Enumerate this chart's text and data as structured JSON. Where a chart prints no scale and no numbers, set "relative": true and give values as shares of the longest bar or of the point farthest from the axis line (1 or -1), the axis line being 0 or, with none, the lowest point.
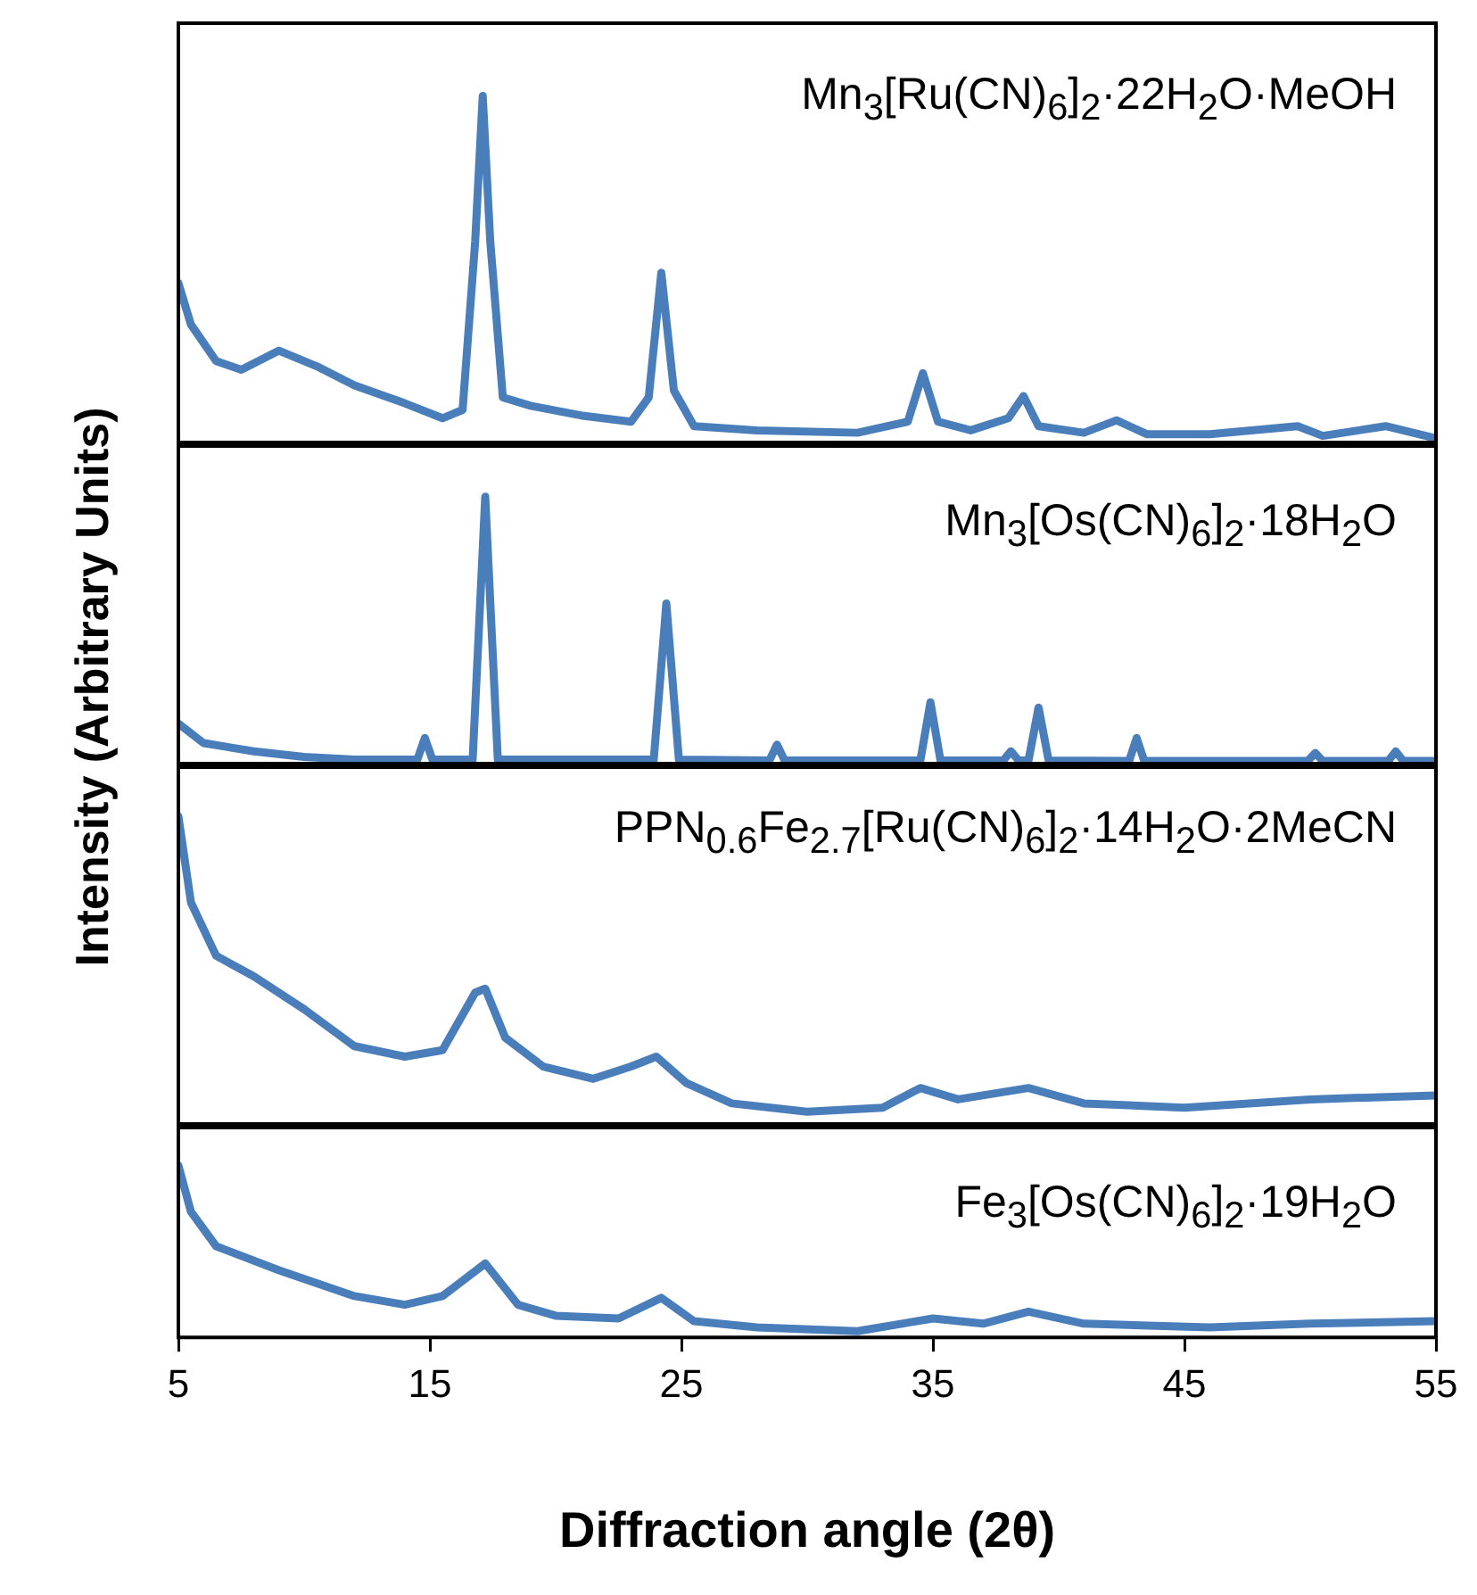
{
  "chart_data": [
    {
      "type": "line",
      "title": "Mn$_{3}$[Ru(CN)$_{6}$]$_{2}$·22H$_{2}$O·MeOH",
      "ylabel": "Intensity (Arbitrary Units)",
      "relative": true,
      "xlim": [
        5,
        55
      ],
      "xticks": [
        5,
        15,
        25,
        35,
        45,
        55
      ],
      "tick_labels": false,
      "legend": false,
      "marker": "none",
      "series": [
        {
          "color": "#4a7ebb",
          "x": [
            5,
            5.5,
            6.5,
            7.5,
            9,
            10.5,
            12,
            14,
            15.5,
            16.3,
            16.8,
            17.1,
            17.4,
            17.9,
            19,
            21,
            23,
            23.7,
            24.2,
            24.7,
            25.5,
            28,
            32,
            34,
            34.6,
            35.2,
            36.5,
            38,
            38.6,
            39.2,
            41,
            42.3,
            43.5,
            46,
            49.5,
            50.5,
            53,
            55
          ],
          "values": [
            0.46,
            0.34,
            0.235,
            0.21,
            0.265,
            0.22,
            0.165,
            0.113,
            0.07,
            0.094,
            0.58,
            1,
            0.58,
            0.13,
            0.106,
            0.078,
            0.06,
            0.13,
            0.49,
            0.15,
            0.047,
            0.035,
            0.028,
            0.06,
            0.2,
            0.06,
            0.035,
            0.07,
            0.134,
            0.047,
            0.028,
            0.064,
            0.024,
            0.024,
            0.047,
            0.019,
            0.047,
            0.012
          ]
        }
      ]
    },
    {
      "type": "line",
      "title": "Mn$_{3}$[Os(CN)$_{6}$]$_{2}$·18H$_{2}$O",
      "relative": true,
      "xlim": [
        5,
        55
      ],
      "xticks": [
        5,
        15,
        25,
        35,
        45,
        55
      ],
      "tick_labels": false,
      "legend": false,
      "marker": "none",
      "series": [
        {
          "color": "#4a7ebb",
          "x": [
            5,
            6,
            8,
            10,
            12,
            14.5,
            14.8,
            15.1,
            16.7,
            17.2,
            17.7,
            23.9,
            24.4,
            24.9,
            28.5,
            28.8,
            29.1,
            34.5,
            34.9,
            35.3,
            37.8,
            38.1,
            38.4,
            38.8,
            39.2,
            39.6,
            42.8,
            43.1,
            43.4,
            49.9,
            50.2,
            50.5,
            53.1,
            53.4,
            53.7,
            55
          ],
          "values": [
            0.15,
            0.077,
            0.046,
            0.025,
            0.015,
            0.015,
            0.096,
            0.015,
            0.015,
            1,
            0.015,
            0.015,
            0.6,
            0.015,
            0.012,
            0.071,
            0.012,
            0.012,
            0.23,
            0.012,
            0.012,
            0.046,
            0.012,
            0.012,
            0.21,
            0.012,
            0.01,
            0.096,
            0.01,
            0.01,
            0.04,
            0.01,
            0.01,
            0.046,
            0.01,
            0.01
          ]
        }
      ]
    },
    {
      "type": "line",
      "title": "PPN$_{0.6}$Fe$_{2.7}$[Ru(CN)$_{6}$]$_{2}$·14H$_{2}$O·2MeCN",
      "relative": true,
      "xlim": [
        5,
        55
      ],
      "xticks": [
        5,
        15,
        25,
        35,
        45,
        55
      ],
      "tick_labels": false,
      "legend": false,
      "marker": "none",
      "series": [
        {
          "color": "#4a7ebb",
          "x": [
            5,
            5.5,
            6.5,
            8,
            10,
            12,
            14,
            15.5,
            16.8,
            17.2,
            18,
            19.5,
            21.5,
            23,
            24,
            25.2,
            27,
            30,
            33,
            34.5,
            36,
            38.8,
            41,
            45,
            50,
            55
          ],
          "values": [
            1,
            0.72,
            0.547,
            0.48,
            0.373,
            0.253,
            0.219,
            0.24,
            0.427,
            0.44,
            0.28,
            0.187,
            0.147,
            0.187,
            0.219,
            0.133,
            0.067,
            0.04,
            0.053,
            0.117,
            0.08,
            0.117,
            0.067,
            0.053,
            0.08,
            0.093
          ]
        }
      ]
    },
    {
      "type": "line",
      "title": "Fe$_{3}$[Os(CN)$_{6}$]$_{2}$·19H$_{2}$O",
      "xlabel": "Diffraction angle (2θ)",
      "relative": true,
      "xlim": [
        5,
        55
      ],
      "xticks": [
        5,
        15,
        25,
        35,
        45,
        55
      ],
      "tick_labels": "x",
      "legend": false,
      "marker": "none",
      "series": [
        {
          "color": "#4a7ebb",
          "x": [
            5,
            5.5,
            6.5,
            9,
            12,
            14,
            15.5,
            17.2,
            18.5,
            20,
            22.5,
            24.2,
            25.5,
            28,
            32,
            35,
            37,
            38.8,
            41,
            46,
            50,
            55
          ],
          "values": [
            1,
            0.73,
            0.53,
            0.39,
            0.24,
            0.19,
            0.24,
            0.43,
            0.19,
            0.126,
            0.11,
            0.23,
            0.094,
            0.058,
            0.036,
            0.11,
            0.08,
            0.15,
            0.08,
            0.058,
            0.08,
            0.094
          ]
        }
      ]
    }
  ]
}
